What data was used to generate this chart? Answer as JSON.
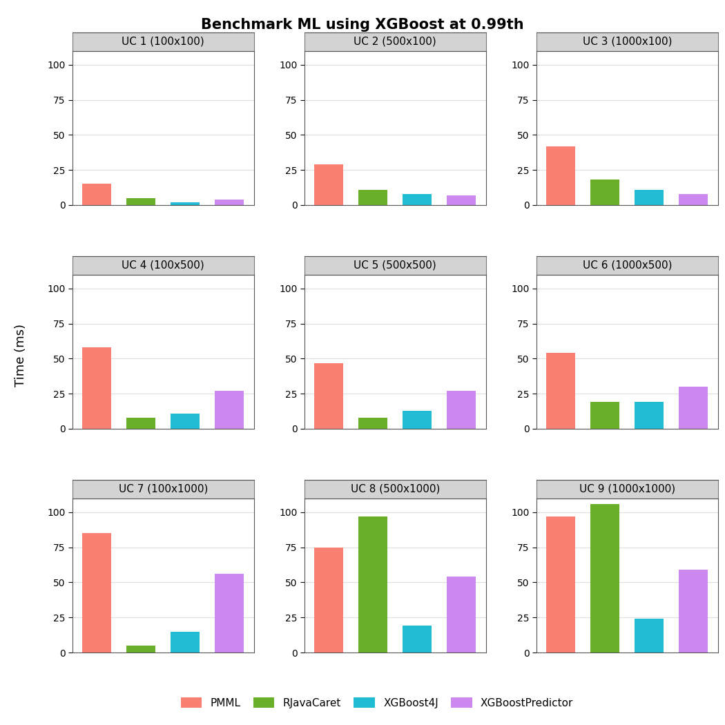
{
  "title": "Benchmark ML using XGBoost at 0.99th",
  "ylabel": "Time (ms)",
  "subplots": [
    {
      "title": "UC 1 (100x100)",
      "values": [
        15,
        5,
        2,
        4
      ]
    },
    {
      "title": "UC 2 (500x100)",
      "values": [
        29,
        11,
        8,
        7
      ]
    },
    {
      "title": "UC 3 (1000x100)",
      "values": [
        42,
        18,
        11,
        8
      ]
    },
    {
      "title": "UC 4 (100x500)",
      "values": [
        58,
        8,
        11,
        27
      ]
    },
    {
      "title": "UC 5 (500x500)",
      "values": [
        47,
        8,
        13,
        27
      ]
    },
    {
      "title": "UC 6 (1000x500)",
      "values": [
        54,
        19,
        19,
        30
      ]
    },
    {
      "title": "UC 7 (100x1000)",
      "values": [
        85,
        5,
        15,
        56
      ]
    },
    {
      "title": "UC 8 (500x1000)",
      "values": [
        75,
        97,
        19,
        54
      ]
    },
    {
      "title": "UC 9 (1000x1000)",
      "values": [
        97,
        106,
        24,
        59
      ]
    }
  ],
  "categories": [
    "PMML",
    "RJavaCaret",
    "XGBoost4J",
    "XGBoostPredictor"
  ],
  "colors": [
    "#FA8072",
    "#6AAF28",
    "#20BCD4",
    "#CC88EE"
  ],
  "panel_bg": "#FFFFFF",
  "strip_bg": "#D3D3D3",
  "strip_border": "#888888",
  "grid_color": "#DDDDDD",
  "ylim": [
    0,
    110
  ],
  "yticks": [
    0,
    25,
    50,
    75,
    100
  ],
  "bar_width": 0.65,
  "nrows": 3,
  "ncols": 3,
  "title_fontsize": 15,
  "axis_label_fontsize": 13,
  "strip_fontsize": 11,
  "tick_fontsize": 10,
  "legend_fontsize": 11
}
